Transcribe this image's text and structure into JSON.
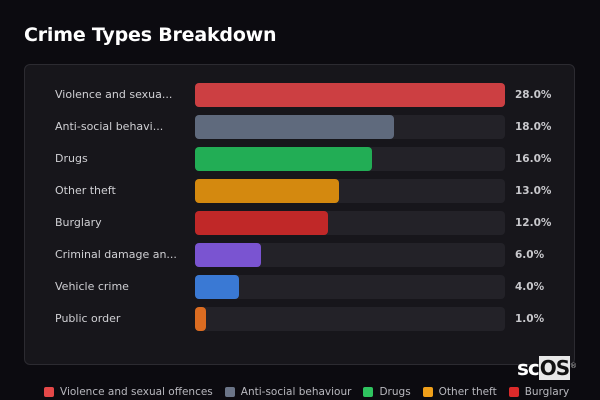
{
  "title": "Crime Types Breakdown",
  "logo": {
    "prefix": "sc",
    "suffix": "OS",
    "mark": "®"
  },
  "chart_data": {
    "type": "bar",
    "orientation": "horizontal",
    "title": "Crime Types Breakdown",
    "xlabel": "",
    "ylabel": "",
    "unit": "%",
    "xlim": [
      0,
      28
    ],
    "grid": false,
    "legend_position": "bottom",
    "categories": [
      "Violence and sexual offences",
      "Anti-social behaviour",
      "Drugs",
      "Other theft",
      "Burglary",
      "Criminal damage and arson",
      "Vehicle crime",
      "Public order"
    ],
    "display_labels": [
      "Violence and sexua...",
      "Anti-social behavi...",
      "Drugs",
      "Other theft",
      "Burglary",
      "Criminal damage an...",
      "Vehicle crime",
      "Public order"
    ],
    "values": [
      28.0,
      18.0,
      16.0,
      13.0,
      12.0,
      6.0,
      4.0,
      1.0
    ],
    "value_labels": [
      "28.0%",
      "18.0%",
      "16.0%",
      "13.0%",
      "12.0%",
      "6.0%",
      "4.0%",
      "1.0%"
    ],
    "colors": [
      "#cc3f42",
      "#5f6a7d",
      "#22ad55",
      "#d4890f",
      "#c02828",
      "#7a54d1",
      "#3a79d4",
      "#db6c21"
    ]
  },
  "legend": [
    {
      "label": "Violence and sexual offences",
      "color": "#e54848"
    },
    {
      "label": "Anti-social behaviour",
      "color": "#6b7588"
    },
    {
      "label": "Drugs",
      "color": "#2fc45f"
    },
    {
      "label": "Other theft",
      "color": "#f0a01a"
    },
    {
      "label": "Burglary",
      "color": "#dc2a2a"
    }
  ]
}
